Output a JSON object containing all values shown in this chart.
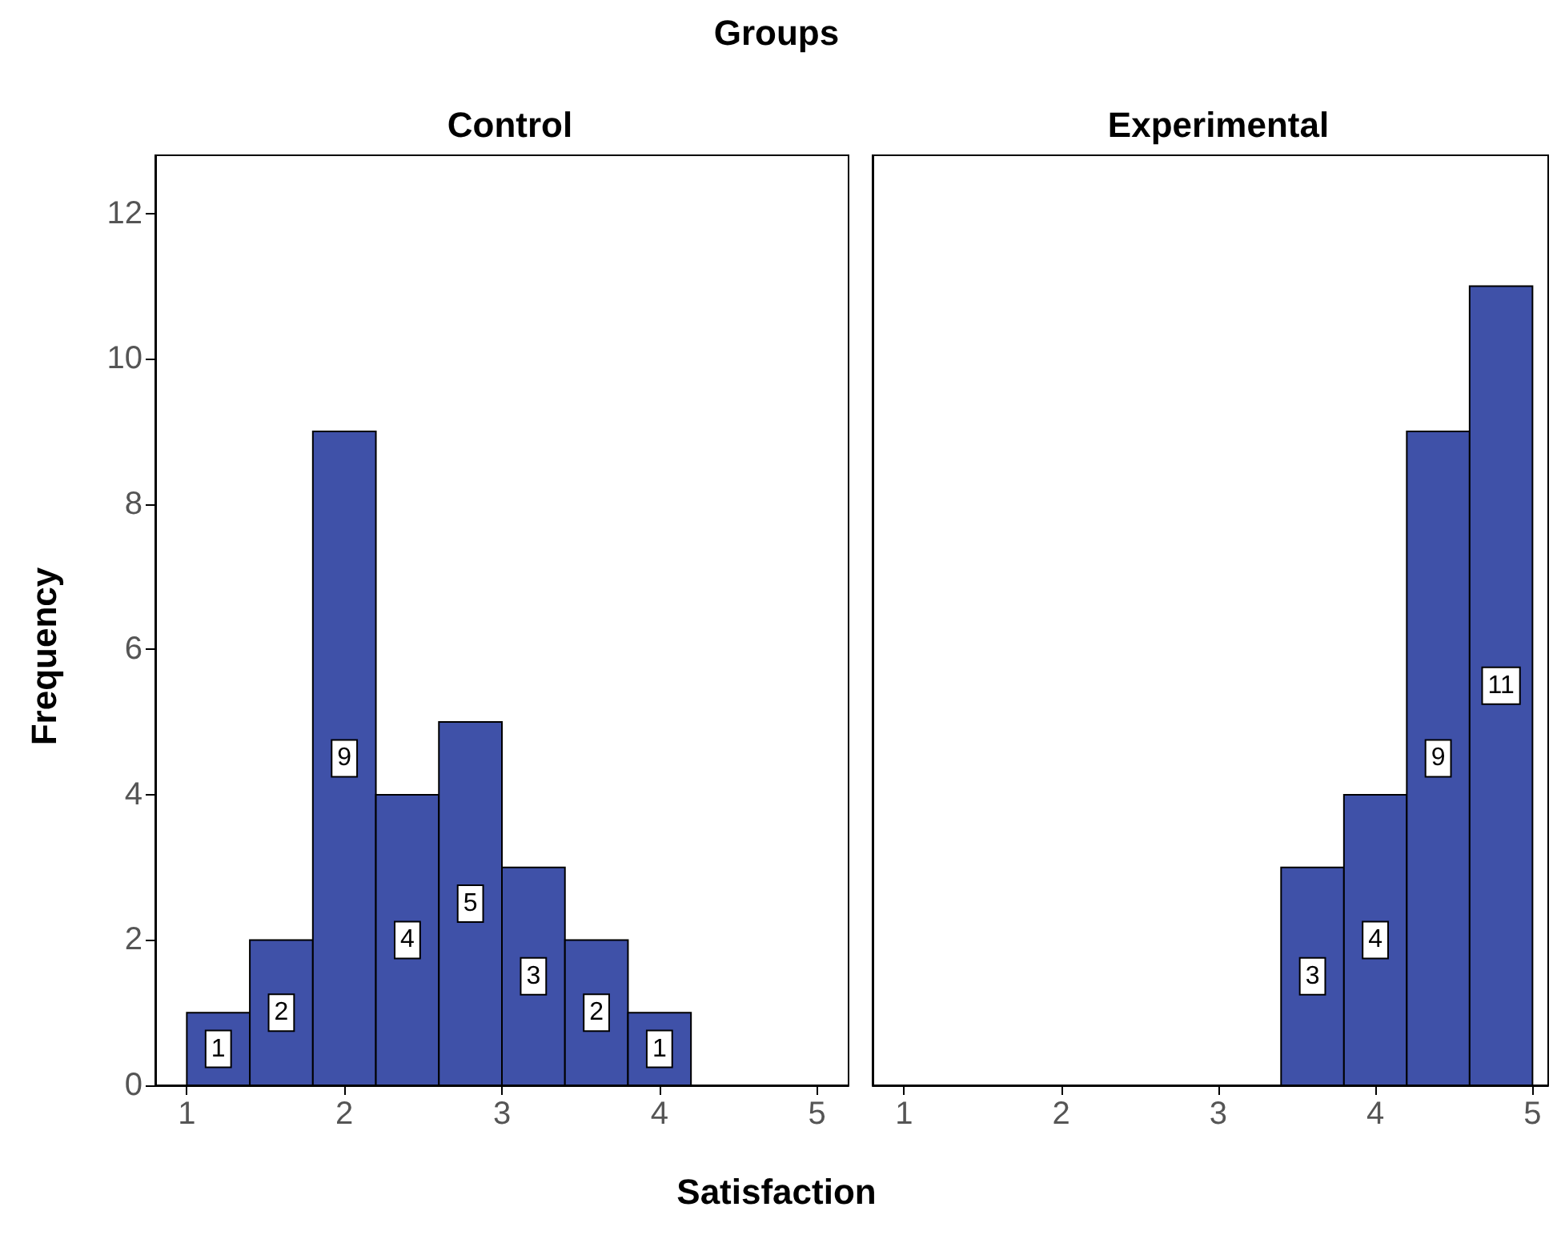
{
  "chart_data": [
    {
      "type": "histogram",
      "title": "Control",
      "annotations": [
        "Groups"
      ],
      "xlabel": "Satisfaction",
      "ylabel": "Frequency",
      "bins": [
        1.0,
        1.4,
        1.8,
        2.2,
        2.6,
        3.0,
        3.4,
        3.8,
        4.2
      ],
      "values": [
        1,
        2,
        9,
        4,
        5,
        3,
        2,
        1
      ],
      "color": "#3f51a8",
      "xlim": [
        0.8,
        5.2
      ],
      "xticks": [
        1,
        2,
        3,
        4,
        5
      ],
      "ylim": [
        0,
        12.8
      ],
      "yticks": [
        0,
        2,
        4,
        6,
        8,
        10,
        12
      ],
      "data_labels": true,
      "grid": false
    },
    {
      "type": "histogram",
      "title": "Experimental",
      "bins": [
        3.4,
        3.8,
        4.2,
        4.6,
        5.0
      ],
      "values": [
        3,
        4,
        9,
        11
      ],
      "color": "#3f51a8",
      "xlim": [
        0.8,
        5.1
      ],
      "xticks": [
        1,
        2,
        3,
        4,
        5
      ],
      "ylim": [
        0,
        12.8
      ],
      "yticks": [
        0,
        2,
        4,
        6,
        8,
        10,
        12
      ],
      "tick_labels": "x",
      "data_labels": true,
      "grid": false
    }
  ]
}
